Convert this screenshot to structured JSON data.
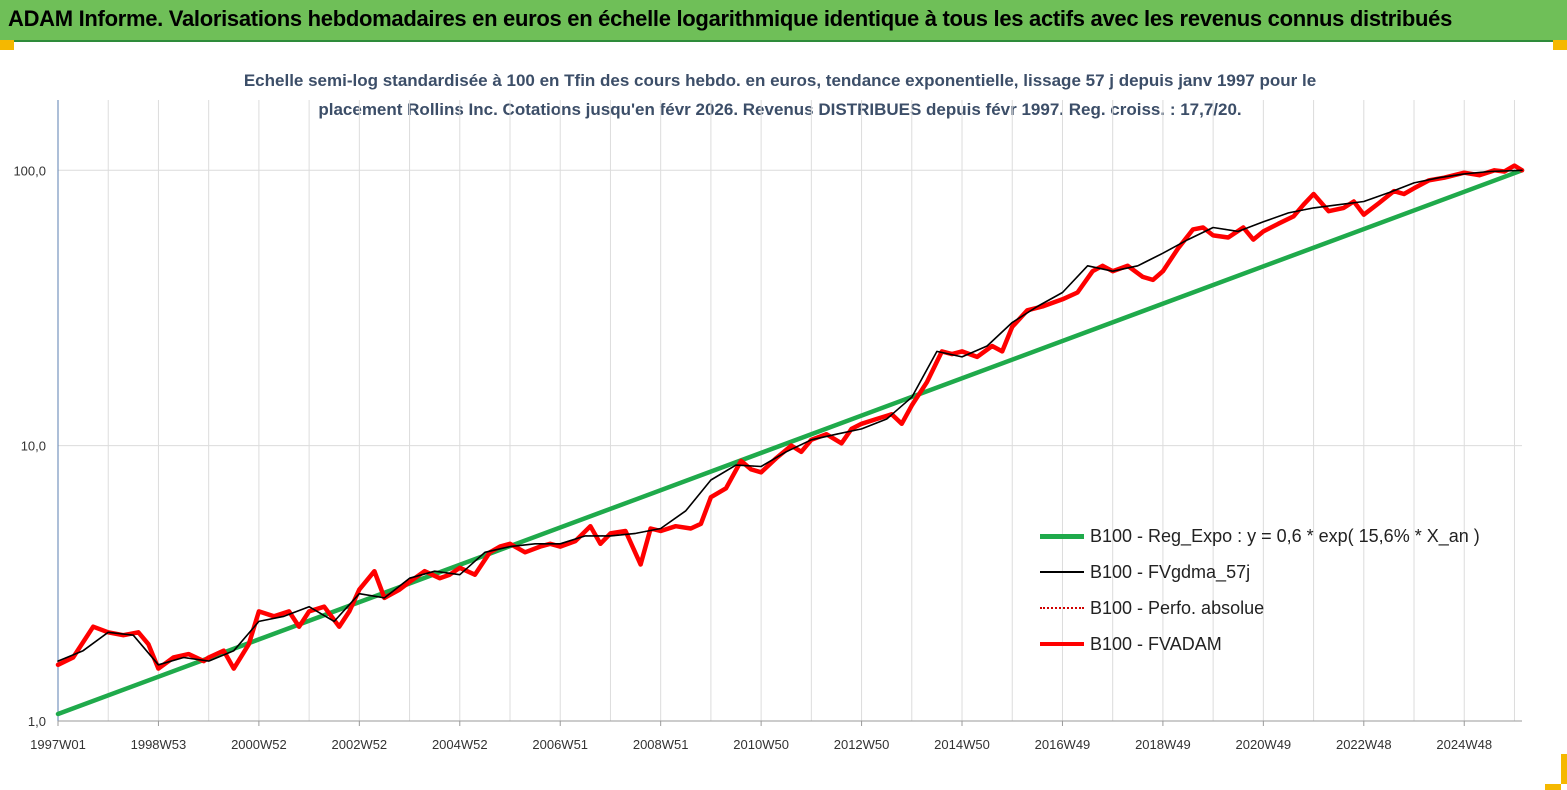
{
  "banner": {
    "title": "ADAM Informe. Valorisations hebdomadaires en euros en échelle logarithmique identique à tous les actifs avec les revenus connus distribués",
    "background": "#6fbf58"
  },
  "chart_data": {
    "type": "line",
    "title_line1": "Echelle semi-log standardisée à 100 en Tfin des cours hebdo. en euros, tendance exponentielle, lissage 57 j depuis janv 1997 pour le",
    "title_line2": "placement Rollins Inc. Cotations jusqu'en févr 2026. Revenus DISTRIBUES depuis févr 1997. Reg. croiss. : 17,7/20.",
    "y_scale": "log",
    "ylim": [
      1,
      180
    ],
    "y_ticks": [
      {
        "value": 1,
        "label": "1,0"
      },
      {
        "value": 10,
        "label": "10,0"
      },
      {
        "value": 100,
        "label": "100,0"
      }
    ],
    "x_range": [
      1997.0,
      2026.15
    ],
    "x_ticks": [
      {
        "x": 1997.0,
        "label": "1997W01"
      },
      {
        "x": 1999.0,
        "label": "1998W53"
      },
      {
        "x": 2001.0,
        "label": "2000W52"
      },
      {
        "x": 2003.0,
        "label": "2002W52"
      },
      {
        "x": 2005.0,
        "label": "2004W52"
      },
      {
        "x": 2007.0,
        "label": "2006W51"
      },
      {
        "x": 2009.0,
        "label": "2008W51"
      },
      {
        "x": 2011.0,
        "label": "2010W50"
      },
      {
        "x": 2013.0,
        "label": "2012W50"
      },
      {
        "x": 2015.0,
        "label": "2014W50"
      },
      {
        "x": 2017.0,
        "label": "2016W49"
      },
      {
        "x": 2019.0,
        "label": "2018W49"
      },
      {
        "x": 2021.0,
        "label": "2020W49"
      },
      {
        "x": 2023.0,
        "label": "2022W48"
      },
      {
        "x": 2025.0,
        "label": "2024W48"
      }
    ],
    "grid": "vertical",
    "legend_position": "bottom-right",
    "series": [
      {
        "name": "B100 - Reg_Expo : y = 0,6 * exp( 15,6% *  X_an )",
        "color": "#1faa4b",
        "style": "solid-thick",
        "x": [
          1997.0,
          2026.15
        ],
        "y": [
          1.06,
          100.0
        ]
      },
      {
        "name": "B100 - FVgdma_57j",
        "color": "#000000",
        "style": "solid-thin",
        "x": [
          1997.0,
          1997.5,
          1998.0,
          1998.5,
          1999.0,
          1999.5,
          2000.0,
          2000.5,
          2001.0,
          2001.5,
          2002.0,
          2002.5,
          2003.0,
          2003.5,
          2004.0,
          2004.5,
          2005.0,
          2005.5,
          2006.0,
          2006.5,
          2007.0,
          2007.5,
          2008.0,
          2008.5,
          2009.0,
          2009.5,
          2010.0,
          2010.5,
          2011.0,
          2011.5,
          2012.0,
          2012.5,
          2013.0,
          2013.5,
          2014.0,
          2014.5,
          2015.0,
          2015.5,
          2016.0,
          2016.5,
          2017.0,
          2017.5,
          2018.0,
          2018.5,
          2019.0,
          2019.5,
          2020.0,
          2020.5,
          2021.0,
          2021.5,
          2022.0,
          2022.5,
          2023.0,
          2023.5,
          2024.0,
          2024.5,
          2025.0,
          2025.5,
          2026.15
        ],
        "y": [
          1.65,
          1.8,
          2.1,
          2.05,
          1.6,
          1.7,
          1.65,
          1.8,
          2.3,
          2.4,
          2.6,
          2.3,
          2.9,
          2.8,
          3.3,
          3.5,
          3.4,
          4.1,
          4.3,
          4.4,
          4.4,
          4.7,
          4.7,
          4.8,
          5.0,
          5.8,
          7.5,
          8.5,
          8.4,
          9.5,
          10.5,
          11.0,
          11.5,
          12.5,
          15.0,
          22.0,
          21.0,
          23.0,
          28.0,
          32.0,
          36.0,
          45.0,
          43.0,
          45.0,
          50.0,
          56.0,
          62.0,
          60.0,
          65.0,
          70.0,
          73.0,
          75.0,
          77.0,
          83.0,
          90.0,
          94.0,
          97.0,
          99.0,
          100.0
        ]
      },
      {
        "name": "B100 - Perfo. absolue",
        "color": "#d00000",
        "style": "dotted",
        "x": [
          1997.0,
          1997.5,
          1998.0,
          1998.5,
          1999.0,
          1999.5,
          2000.0,
          2000.5,
          2001.0,
          2001.5,
          2002.0,
          2002.5,
          2003.0,
          2003.5,
          2004.0,
          2004.5,
          2005.0,
          2005.5,
          2006.0,
          2006.5,
          2007.0,
          2007.5,
          2008.0,
          2008.5,
          2009.0,
          2009.5,
          2010.0,
          2010.5,
          2011.0,
          2011.5,
          2012.0,
          2012.5,
          2013.0,
          2013.5,
          2014.0,
          2014.5,
          2015.0,
          2015.5,
          2016.0,
          2016.5,
          2017.0,
          2017.5,
          2018.0,
          2018.5,
          2019.0,
          2019.5,
          2020.0,
          2020.5,
          2021.0,
          2021.5,
          2022.0,
          2022.5,
          2023.0,
          2023.5,
          2024.0,
          2024.5,
          2025.0,
          2025.5,
          2026.15
        ],
        "y": [
          1.65,
          1.8,
          2.1,
          2.05,
          1.6,
          1.7,
          1.65,
          1.8,
          2.3,
          2.4,
          2.6,
          2.3,
          2.9,
          2.8,
          3.3,
          3.5,
          3.4,
          4.1,
          4.3,
          4.4,
          4.4,
          4.7,
          4.7,
          4.8,
          5.0,
          5.8,
          7.5,
          8.5,
          8.4,
          9.5,
          10.5,
          11.0,
          11.5,
          12.5,
          15.0,
          22.0,
          21.0,
          23.0,
          28.0,
          32.0,
          36.0,
          45.0,
          43.0,
          45.0,
          50.0,
          56.0,
          62.0,
          60.0,
          65.0,
          70.0,
          73.0,
          75.0,
          77.0,
          83.0,
          90.0,
          94.0,
          97.0,
          99.0,
          100.0
        ]
      },
      {
        "name": "B100 - FVADAM",
        "color": "#ff0000",
        "style": "solid-thick",
        "x": [
          1997.0,
          1997.3,
          1997.7,
          1998.0,
          1998.3,
          1998.6,
          1998.8,
          1999.0,
          1999.3,
          1999.6,
          1999.9,
          2000.0,
          2000.3,
          2000.5,
          2000.8,
          2001.0,
          2001.3,
          2001.6,
          2001.8,
          2002.0,
          2002.3,
          2002.6,
          2002.8,
          2003.0,
          2003.3,
          2003.5,
          2003.8,
          2004.0,
          2004.3,
          2004.6,
          2004.8,
          2005.0,
          2005.3,
          2005.6,
          2005.8,
          2006.0,
          2006.3,
          2006.6,
          2006.8,
          2007.0,
          2007.3,
          2007.6,
          2007.8,
          2008.0,
          2008.3,
          2008.6,
          2008.8,
          2009.0,
          2009.3,
          2009.6,
          2009.8,
          2010.0,
          2010.3,
          2010.6,
          2010.8,
          2011.0,
          2011.3,
          2011.6,
          2011.8,
          2012.0,
          2012.3,
          2012.6,
          2012.8,
          2013.0,
          2013.3,
          2013.6,
          2013.8,
          2014.0,
          2014.3,
          2014.6,
          2014.8,
          2015.0,
          2015.3,
          2015.6,
          2015.8,
          2016.0,
          2016.3,
          2016.6,
          2016.8,
          2017.0,
          2017.3,
          2017.6,
          2017.8,
          2018.0,
          2018.3,
          2018.6,
          2018.8,
          2019.0,
          2019.3,
          2019.6,
          2019.8,
          2020.0,
          2020.3,
          2020.6,
          2020.8,
          2021.0,
          2021.3,
          2021.6,
          2021.8,
          2022.0,
          2022.3,
          2022.6,
          2022.8,
          2023.0,
          2023.3,
          2023.6,
          2023.8,
          2024.0,
          2024.3,
          2024.6,
          2024.8,
          2025.0,
          2025.3,
          2025.6,
          2025.8,
          2026.0,
          2026.15
        ],
        "y": [
          1.6,
          1.7,
          2.2,
          2.1,
          2.05,
          2.1,
          1.9,
          1.55,
          1.7,
          1.75,
          1.65,
          1.7,
          1.8,
          1.55,
          1.9,
          2.5,
          2.4,
          2.5,
          2.2,
          2.5,
          2.6,
          2.2,
          2.5,
          3.0,
          3.5,
          2.8,
          3.0,
          3.2,
          3.5,
          3.3,
          3.4,
          3.6,
          3.4,
          4.1,
          4.3,
          4.4,
          4.1,
          4.3,
          4.4,
          4.3,
          4.5,
          5.1,
          4.4,
          4.8,
          4.9,
          3.7,
          5.0,
          4.9,
          5.1,
          5.0,
          5.2,
          6.5,
          7.0,
          8.8,
          8.2,
          8.0,
          9.0,
          10.0,
          9.5,
          10.5,
          11.0,
          10.2,
          11.5,
          12.0,
          12.5,
          13.0,
          12.0,
          14.0,
          17.0,
          22.0,
          21.5,
          22.0,
          21.0,
          23.0,
          22.0,
          27.0,
          31.0,
          32.0,
          33.0,
          34.0,
          36.0,
          43.0,
          45.0,
          43.0,
          45.0,
          41.0,
          40.0,
          43.0,
          52.0,
          61.0,
          62.0,
          58.0,
          57.0,
          62.0,
          56.0,
          60.0,
          64.0,
          68.0,
          75.0,
          82.0,
          71.0,
          73.0,
          77.0,
          69.0,
          76.0,
          84.0,
          82.0,
          86.0,
          92.0,
          94.0,
          96.0,
          98.0,
          96.0,
          100.0,
          99.0,
          104.0,
          100.0
        ]
      }
    ]
  }
}
